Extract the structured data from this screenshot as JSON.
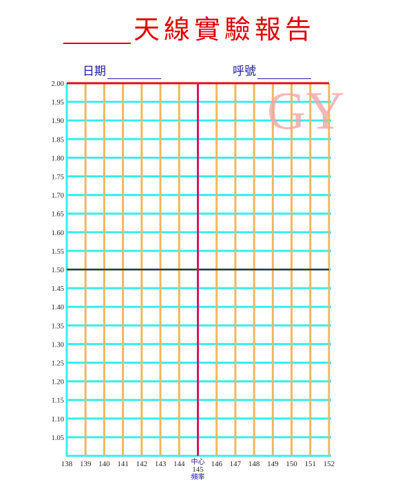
{
  "title": "天線實驗報告",
  "fields": {
    "date_label": "日期",
    "callsign_label": "呼號"
  },
  "watermark": "GY",
  "chart": {
    "y_ticks": [
      "2.00",
      "1.95",
      "1.90",
      "1.85",
      "1.80",
      "1.75",
      "1.70",
      "1.65",
      "1.60",
      "1.55",
      "1.50",
      "1.45",
      "1.40",
      "1.35",
      "1.30",
      "1.25",
      "1.20",
      "1.15",
      "1.10",
      "1.05"
    ],
    "x_ticks": [
      "138",
      "139",
      "140",
      "141",
      "142",
      "143",
      "144",
      "145",
      "146",
      "147",
      "148",
      "149",
      "150",
      "151",
      "152"
    ],
    "center_label_top": "中心",
    "center_label_bottom": "頻率",
    "center_value": "145",
    "colors": {
      "grid_h": "#33eeee",
      "grid_v": "#f0b860",
      "top_line": "#dd1111",
      "mid_line": "#5a2a1a",
      "center_line": "#dd1166",
      "title": "#e00000",
      "labels": "#1a1aa0"
    }
  }
}
